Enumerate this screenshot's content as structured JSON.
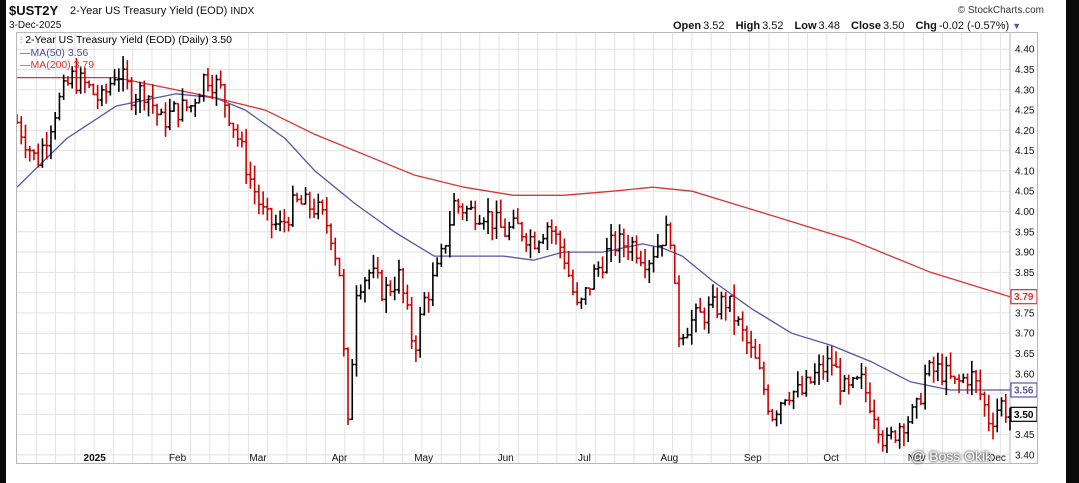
{
  "header": {
    "symbol": "$UST2Y",
    "name": "2-Year US Treasury Yield (EOD)",
    "exchange": "INDX",
    "date": "3-Dec-2025",
    "brand": "© StockCharts.com",
    "open_label": "Open",
    "open": "3.52",
    "high_label": "High",
    "high": "3.52",
    "low_label": "Low",
    "low": "3.48",
    "close_label": "Close",
    "close": "3.50",
    "chg_label": "Chg",
    "chg": "-0.02 (-0.57%)"
  },
  "legend": {
    "main": "2-Year US Treasury Yield (EOD) (Daily) 3.50",
    "ma50": "MA(50) 3.56",
    "ma200": "MA(200) 3.79"
  },
  "watermark": "@ Boss Okik",
  "colors": {
    "up": "#000000",
    "down": "#cc0000",
    "ma50": "#5555aa",
    "ma200": "#dd3333",
    "grid": "#e2e2e2",
    "box_price": "#000000"
  },
  "chart_data": {
    "type": "line",
    "subtype": "ohlc-bars",
    "ylim": [
      3.38,
      4.44
    ],
    "y_ticks": [
      "4.40",
      "4.35",
      "4.30",
      "4.25",
      "4.20",
      "4.15",
      "4.10",
      "4.05",
      "4.00",
      "3.95",
      "3.90",
      "3.85",
      "3.80",
      "3.75",
      "3.70",
      "3.65",
      "3.60",
      "3.55",
      "3.50",
      "3.45",
      "3.40"
    ],
    "x_ticks": [
      {
        "label": "2025",
        "pos": 0.067,
        "bold": true
      },
      {
        "label": "Feb",
        "pos": 0.153
      },
      {
        "label": "Mar",
        "pos": 0.234
      },
      {
        "label": "Apr",
        "pos": 0.317
      },
      {
        "label": "May",
        "pos": 0.4
      },
      {
        "label": "Jun",
        "pos": 0.484
      },
      {
        "label": "Jul",
        "pos": 0.565
      },
      {
        "label": "Aug",
        "pos": 0.648
      },
      {
        "label": "Sep",
        "pos": 0.732
      },
      {
        "label": "Oct",
        "pos": 0.812
      },
      {
        "label": "Nov",
        "pos": 0.897
      },
      {
        "label": "Dec",
        "pos": 0.978
      }
    ],
    "grid": true,
    "legend_position": "top-left",
    "close_anchors": [
      [
        0.0,
        4.22
      ],
      [
        0.02,
        4.12
      ],
      [
        0.04,
        4.26
      ],
      [
        0.055,
        4.33
      ],
      [
        0.07,
        4.31
      ],
      [
        0.085,
        4.27
      ],
      [
        0.1,
        4.35
      ],
      [
        0.115,
        4.29
      ],
      [
        0.13,
        4.3
      ],
      [
        0.145,
        4.22
      ],
      [
        0.16,
        4.25
      ],
      [
        0.175,
        4.26
      ],
      [
        0.19,
        4.34
      ],
      [
        0.205,
        4.3
      ],
      [
        0.22,
        4.2
      ],
      [
        0.235,
        4.08
      ],
      [
        0.25,
        3.98
      ],
      [
        0.265,
        3.96
      ],
      [
        0.28,
        4.02
      ],
      [
        0.3,
        4.01
      ],
      [
        0.315,
        3.96
      ],
      [
        0.325,
        3.85
      ],
      [
        0.333,
        3.45
      ],
      [
        0.342,
        3.82
      ],
      [
        0.355,
        3.85
      ],
      [
        0.37,
        3.8
      ],
      [
        0.385,
        3.84
      ],
      [
        0.4,
        3.66
      ],
      [
        0.41,
        3.78
      ],
      [
        0.425,
        3.86
      ],
      [
        0.44,
        4.02
      ],
      [
        0.455,
        4.0
      ],
      [
        0.47,
        4.0
      ],
      [
        0.49,
        3.95
      ],
      [
        0.505,
        3.96
      ],
      [
        0.52,
        3.93
      ],
      [
        0.535,
        3.97
      ],
      [
        0.55,
        3.9
      ],
      [
        0.565,
        3.75
      ],
      [
        0.58,
        3.84
      ],
      [
        0.6,
        3.92
      ],
      [
        0.62,
        3.92
      ],
      [
        0.635,
        3.88
      ],
      [
        0.65,
        3.94
      ],
      [
        0.658,
        3.95
      ],
      [
        0.665,
        3.7
      ],
      [
        0.68,
        3.73
      ],
      [
        0.7,
        3.76
      ],
      [
        0.715,
        3.78
      ],
      [
        0.73,
        3.7
      ],
      [
        0.745,
        3.62
      ],
      [
        0.76,
        3.5
      ],
      [
        0.775,
        3.56
      ],
      [
        0.79,
        3.55
      ],
      [
        0.805,
        3.6
      ],
      [
        0.82,
        3.63
      ],
      [
        0.835,
        3.55
      ],
      [
        0.85,
        3.58
      ],
      [
        0.865,
        3.5
      ],
      [
        0.875,
        3.42
      ],
      [
        0.89,
        3.48
      ],
      [
        0.905,
        3.5
      ],
      [
        0.915,
        3.6
      ],
      [
        0.93,
        3.61
      ],
      [
        0.945,
        3.57
      ],
      [
        0.96,
        3.6
      ],
      [
        0.97,
        3.55
      ],
      [
        0.98,
        3.48
      ],
      [
        0.99,
        3.53
      ],
      [
        1.0,
        3.5
      ]
    ],
    "series": [
      {
        "name": "MA(50)",
        "values": [
          [
            0.0,
            4.06
          ],
          [
            0.05,
            4.18
          ],
          [
            0.1,
            4.26
          ],
          [
            0.16,
            4.29
          ],
          [
            0.2,
            4.28
          ],
          [
            0.23,
            4.25
          ],
          [
            0.27,
            4.18
          ],
          [
            0.3,
            4.1
          ],
          [
            0.34,
            4.02
          ],
          [
            0.38,
            3.95
          ],
          [
            0.42,
            3.89
          ],
          [
            0.45,
            3.89
          ],
          [
            0.49,
            3.89
          ],
          [
            0.52,
            3.88
          ],
          [
            0.55,
            3.9
          ],
          [
            0.59,
            3.9
          ],
          [
            0.63,
            3.92
          ],
          [
            0.65,
            3.91
          ],
          [
            0.67,
            3.89
          ],
          [
            0.7,
            3.83
          ],
          [
            0.74,
            3.76
          ],
          [
            0.78,
            3.7
          ],
          [
            0.82,
            3.67
          ],
          [
            0.86,
            3.63
          ],
          [
            0.9,
            3.58
          ],
          [
            0.94,
            3.56
          ],
          [
            0.98,
            3.56
          ],
          [
            1.0,
            3.56
          ]
        ]
      },
      {
        "name": "MA(200)",
        "values": [
          [
            0.0,
            4.33
          ],
          [
            0.1,
            4.33
          ],
          [
            0.2,
            4.28
          ],
          [
            0.25,
            4.25
          ],
          [
            0.3,
            4.19
          ],
          [
            0.35,
            4.14
          ],
          [
            0.4,
            4.09
          ],
          [
            0.45,
            4.06
          ],
          [
            0.5,
            4.04
          ],
          [
            0.55,
            4.04
          ],
          [
            0.6,
            4.05
          ],
          [
            0.64,
            4.06
          ],
          [
            0.68,
            4.05
          ],
          [
            0.72,
            4.02
          ],
          [
            0.76,
            3.99
          ],
          [
            0.8,
            3.96
          ],
          [
            0.84,
            3.93
          ],
          [
            0.88,
            3.89
          ],
          [
            0.92,
            3.85
          ],
          [
            0.96,
            3.82
          ],
          [
            1.0,
            3.79
          ]
        ]
      }
    ],
    "last_close": 3.5,
    "ma50_last": 3.56,
    "ma200_last": 3.79
  }
}
